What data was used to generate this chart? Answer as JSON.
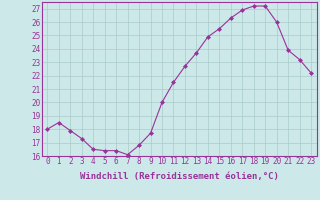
{
  "x": [
    0,
    1,
    2,
    3,
    4,
    5,
    6,
    7,
    8,
    9,
    10,
    11,
    12,
    13,
    14,
    15,
    16,
    17,
    18,
    19,
    20,
    21,
    22,
    23
  ],
  "y": [
    18.0,
    18.5,
    17.9,
    17.3,
    16.5,
    16.4,
    16.4,
    16.1,
    16.8,
    17.7,
    20.0,
    21.5,
    22.7,
    23.7,
    24.9,
    25.5,
    26.3,
    26.9,
    27.2,
    27.2,
    26.0,
    23.9,
    23.2,
    22.2
  ],
  "line_color": "#993399",
  "marker": "D",
  "marker_size": 2,
  "bg_color": "#cce8e8",
  "grid_color": "#aacccc",
  "xlabel": "Windchill (Refroidissement éolien,°C)",
  "xlabel_fontsize": 6.5,
  "tick_fontsize": 5.5,
  "ylim": [
    16,
    27.5
  ],
  "xlim": [
    -0.5,
    23.5
  ],
  "yticks": [
    16,
    17,
    18,
    19,
    20,
    21,
    22,
    23,
    24,
    25,
    26,
    27
  ],
  "xticks": [
    0,
    1,
    2,
    3,
    4,
    5,
    6,
    7,
    8,
    9,
    10,
    11,
    12,
    13,
    14,
    15,
    16,
    17,
    18,
    19,
    20,
    21,
    22,
    23
  ]
}
